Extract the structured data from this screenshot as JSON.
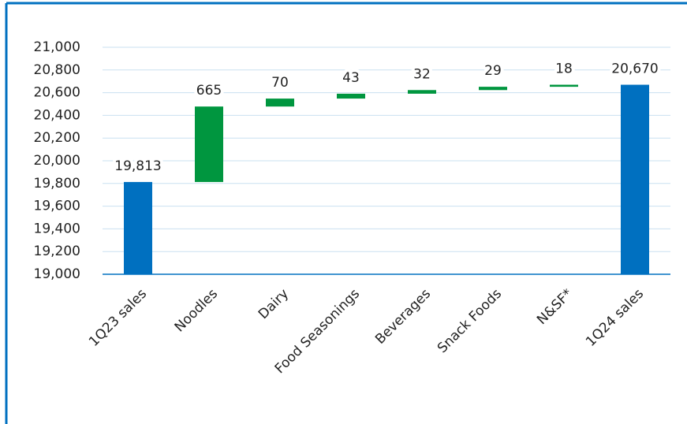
{
  "chart_data": {
    "type": "waterfall",
    "categories": [
      "1Q23 sales",
      "Noodles",
      "Dairy",
      "Food Seasonings",
      "Beverages",
      "Snack Foods",
      "N&SF*",
      "1Q24 sales"
    ],
    "values": [
      19813,
      665,
      70,
      43,
      32,
      29,
      18,
      20670
    ],
    "value_labels": [
      "19,813",
      "665",
      "70",
      "43",
      "32",
      "29",
      "18",
      "20,670"
    ],
    "measure": [
      "total",
      "relative",
      "relative",
      "relative",
      "relative",
      "relative",
      "relative",
      "total"
    ],
    "total_color": "#0070c0",
    "increase_color": "#00963f",
    "ylim": [
      19000,
      21000
    ],
    "yticks": [
      {
        "value": 19000,
        "label": "19,000"
      },
      {
        "value": 19200,
        "label": "19,200"
      },
      {
        "value": 19400,
        "label": "19,400"
      },
      {
        "value": 19600,
        "label": "19,600"
      },
      {
        "value": 19800,
        "label": "19,800"
      },
      {
        "value": 20000,
        "label": "20,000"
      },
      {
        "value": 20200,
        "label": "20,200"
      },
      {
        "value": 20400,
        "label": "20,400"
      },
      {
        "value": 20600,
        "label": "20,600"
      },
      {
        "value": 20800,
        "label": "20,800"
      },
      {
        "value": 21000,
        "label": "21,000"
      }
    ],
    "grid": true
  }
}
